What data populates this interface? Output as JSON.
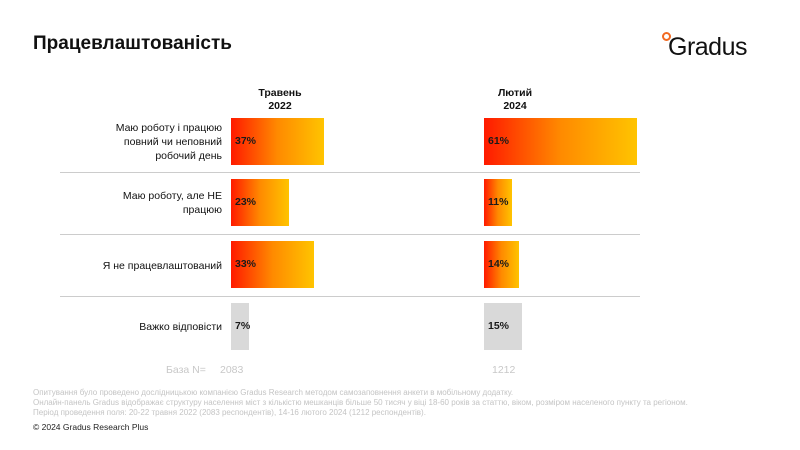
{
  "title": "Працевлаштованість",
  "logo": {
    "text": "Gradus",
    "icon": "circle-dot-icon",
    "accent": "#f26a21"
  },
  "chart_data": {
    "type": "bar",
    "orientation": "horizontal",
    "title": "Працевлаштованість",
    "categories": [
      "Маю роботу і працюю повний чи неповний робочий день",
      "Маю роботу, але НЕ працюю",
      "Я не працевлаштований",
      "Важко відповісти"
    ],
    "series": [
      {
        "name": "Травень 2022",
        "name_line1": "Травень",
        "name_line2": "2022",
        "values": [
          37,
          23,
          33,
          7
        ],
        "labels": [
          "37%",
          "23%",
          "33%",
          "7%"
        ],
        "base": "2083"
      },
      {
        "name": "Лютий 2024",
        "name_line1": "Лютий",
        "name_line2": "2024",
        "values": [
          61,
          11,
          14,
          15
        ],
        "labels": [
          "61%",
          "11%",
          "14%",
          "15%"
        ],
        "base": "1212"
      }
    ],
    "xlim": [
      0,
      61
    ],
    "unit": "%",
    "grey_category_index": 3,
    "colors": {
      "gradient_start": "#ff1a00",
      "gradient_end": "#ffc400",
      "neutral": "#d9d9d9"
    }
  },
  "row_labels": [
    [
      "Маю роботу і працюю",
      "повний чи неповний",
      "робочий день"
    ],
    [
      "Маю роботу, але НЕ",
      "працюю"
    ],
    [
      "Я не працевлаштований"
    ],
    [
      "Важко відповісти"
    ]
  ],
  "base_label": "База N=",
  "footnote": [
    "Опитування було проведено дослідницькою компанією Gradus Research методом самозаповнення анкети в мобільному додатку.",
    "Онлайн-панель Gradus відображає структуру населення міст з кількістю мешканців більше 50 тисяч у віці 18-60 років за статтю, віком, розміром населеного пункту та регіоном.",
    "Період проведення поля: 20-22 травня 2022 (2083 респондентів), 14-16 лютого 2024 (1212 респондентів)."
  ],
  "copyright": "© 2024 Gradus Research Plus"
}
